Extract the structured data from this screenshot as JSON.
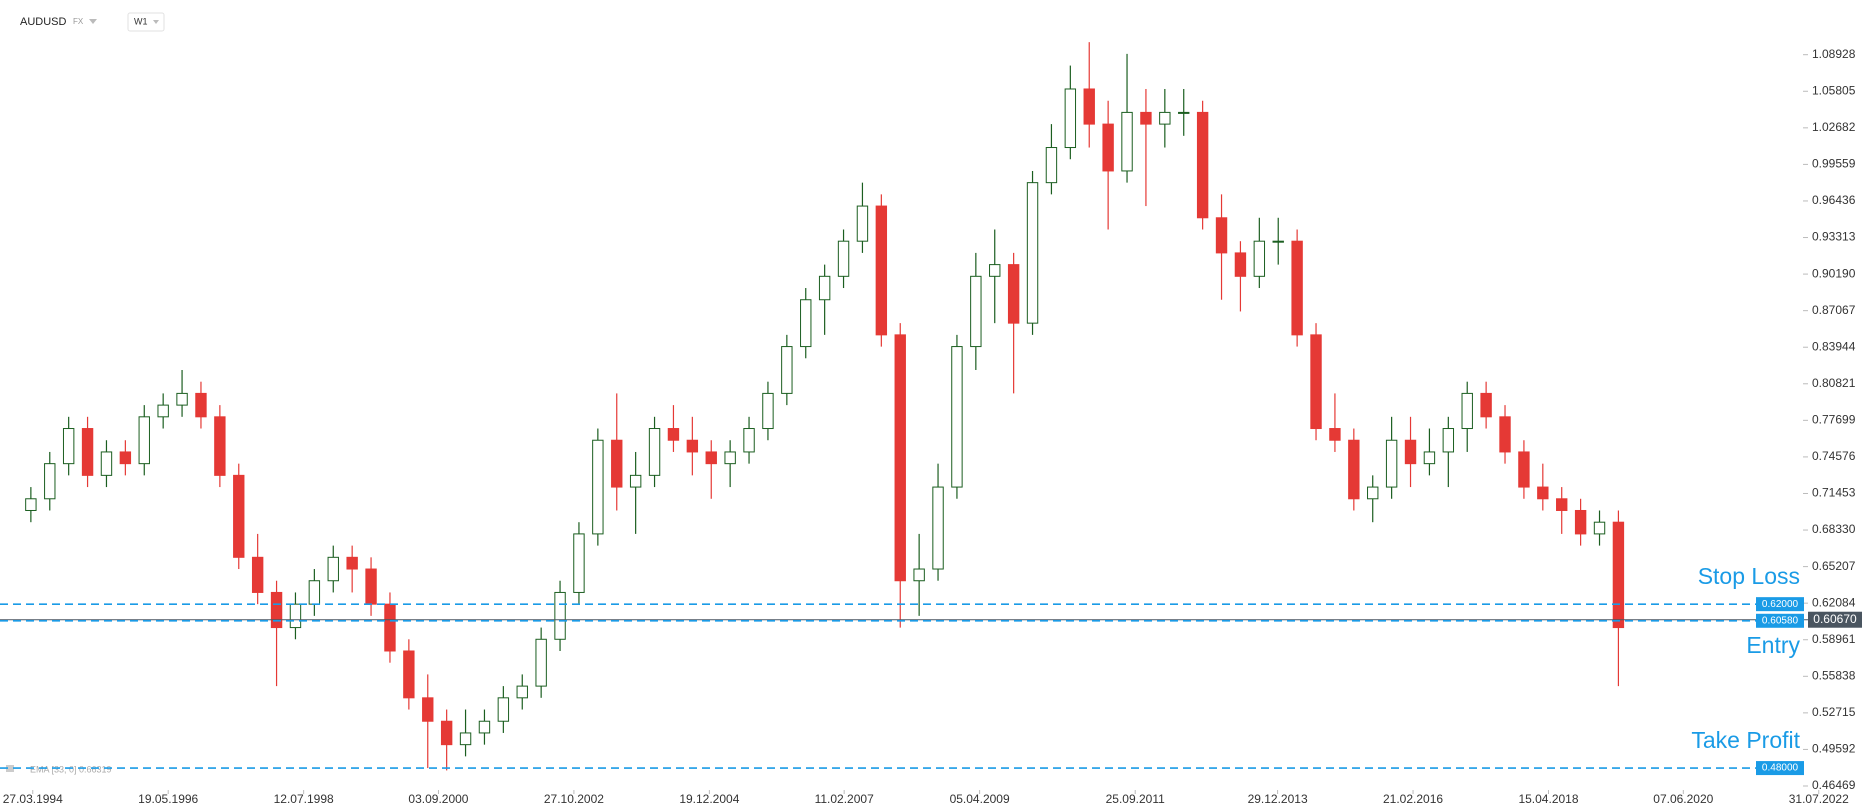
{
  "chart_data": {
    "type": "candlestick",
    "symbol": "AUDUSD",
    "market": "FX",
    "timeframe": "W1",
    "indicator_label": "EMA [33, 0] 0.66319",
    "up_color": "#1b5e20",
    "down_color": "#e53935",
    "x": [
      1994.2,
      1994.5,
      1994.8,
      1995.1,
      1995.4,
      1995.7,
      1996.0,
      1996.3,
      1996.6,
      1996.9,
      1997.2,
      1997.5,
      1997.8,
      1998.1,
      1998.4,
      1998.7,
      1999.0,
      1999.3,
      1999.6,
      1999.9,
      2000.2,
      2000.5,
      2000.8,
      2001.1,
      2001.4,
      2001.7,
      2002.0,
      2002.3,
      2002.6,
      2002.9,
      2003.2,
      2003.5,
      2003.8,
      2004.1,
      2004.4,
      2004.7,
      2005.0,
      2005.3,
      2005.6,
      2005.9,
      2006.2,
      2006.5,
      2006.8,
      2007.1,
      2007.4,
      2007.7,
      2008.0,
      2008.3,
      2008.6,
      2008.9,
      2009.2,
      2009.5,
      2009.8,
      2010.1,
      2010.4,
      2010.7,
      2011.0,
      2011.3,
      2011.6,
      2011.9,
      2012.2,
      2012.5,
      2012.8,
      2013.1,
      2013.4,
      2013.7,
      2014.0,
      2014.3,
      2014.6,
      2014.9,
      2015.2,
      2015.5,
      2015.8,
      2016.1,
      2016.4,
      2016.7,
      2017.0,
      2017.3,
      2017.6,
      2017.9,
      2018.2,
      2018.5,
      2018.8,
      2019.1,
      2019.4
    ],
    "open": [
      0.7,
      0.71,
      0.74,
      0.77,
      0.73,
      0.75,
      0.74,
      0.78,
      0.79,
      0.8,
      0.78,
      0.73,
      0.66,
      0.63,
      0.6,
      0.62,
      0.64,
      0.66,
      0.65,
      0.62,
      0.58,
      0.54,
      0.52,
      0.5,
      0.51,
      0.52,
      0.54,
      0.55,
      0.59,
      0.63,
      0.68,
      0.76,
      0.72,
      0.73,
      0.77,
      0.76,
      0.75,
      0.74,
      0.75,
      0.77,
      0.8,
      0.84,
      0.88,
      0.9,
      0.93,
      0.96,
      0.85,
      0.64,
      0.65,
      0.72,
      0.84,
      0.9,
      0.91,
      0.86,
      0.98,
      1.01,
      1.06,
      1.03,
      0.99,
      1.04,
      1.03,
      1.04,
      1.04,
      0.95,
      0.92,
      0.9,
      0.93,
      0.93,
      0.85,
      0.77,
      0.76,
      0.71,
      0.72,
      0.76,
      0.74,
      0.75,
      0.77,
      0.8,
      0.78,
      0.75,
      0.72,
      0.71,
      0.7,
      0.68,
      0.69
    ],
    "high": [
      0.72,
      0.75,
      0.78,
      0.78,
      0.76,
      0.76,
      0.79,
      0.8,
      0.82,
      0.81,
      0.79,
      0.74,
      0.68,
      0.64,
      0.63,
      0.65,
      0.67,
      0.67,
      0.66,
      0.63,
      0.59,
      0.56,
      0.53,
      0.53,
      0.53,
      0.55,
      0.56,
      0.6,
      0.64,
      0.69,
      0.77,
      0.8,
      0.75,
      0.78,
      0.79,
      0.78,
      0.76,
      0.76,
      0.78,
      0.81,
      0.85,
      0.89,
      0.91,
      0.94,
      0.98,
      0.97,
      0.86,
      0.68,
      0.74,
      0.85,
      0.92,
      0.94,
      0.92,
      0.99,
      1.03,
      1.08,
      1.1,
      1.05,
      1.09,
      1.06,
      1.06,
      1.06,
      1.05,
      0.97,
      0.93,
      0.95,
      0.95,
      0.94,
      0.86,
      0.8,
      0.77,
      0.73,
      0.78,
      0.78,
      0.77,
      0.78,
      0.81,
      0.81,
      0.79,
      0.76,
      0.74,
      0.72,
      0.71,
      0.7,
      0.7
    ],
    "low": [
      0.69,
      0.7,
      0.73,
      0.72,
      0.72,
      0.73,
      0.73,
      0.77,
      0.78,
      0.77,
      0.72,
      0.65,
      0.62,
      0.55,
      0.59,
      0.61,
      0.63,
      0.63,
      0.61,
      0.57,
      0.53,
      0.48,
      0.478,
      0.49,
      0.5,
      0.51,
      0.53,
      0.54,
      0.58,
      0.62,
      0.67,
      0.7,
      0.68,
      0.72,
      0.75,
      0.73,
      0.71,
      0.72,
      0.74,
      0.76,
      0.79,
      0.83,
      0.85,
      0.89,
      0.92,
      0.84,
      0.6,
      0.61,
      0.64,
      0.71,
      0.82,
      0.86,
      0.8,
      0.85,
      0.97,
      1.0,
      1.01,
      0.94,
      0.98,
      0.96,
      1.01,
      1.02,
      0.94,
      0.88,
      0.87,
      0.89,
      0.91,
      0.84,
      0.76,
      0.75,
      0.7,
      0.69,
      0.71,
      0.72,
      0.73,
      0.72,
      0.75,
      0.77,
      0.74,
      0.71,
      0.7,
      0.68,
      0.67,
      0.67,
      0.55
    ],
    "close": [
      0.71,
      0.74,
      0.77,
      0.73,
      0.75,
      0.74,
      0.78,
      0.79,
      0.8,
      0.78,
      0.73,
      0.66,
      0.63,
      0.6,
      0.62,
      0.64,
      0.66,
      0.65,
      0.62,
      0.58,
      0.54,
      0.52,
      0.5,
      0.51,
      0.52,
      0.54,
      0.55,
      0.59,
      0.63,
      0.68,
      0.76,
      0.72,
      0.73,
      0.77,
      0.76,
      0.75,
      0.74,
      0.75,
      0.77,
      0.8,
      0.84,
      0.88,
      0.9,
      0.93,
      0.96,
      0.85,
      0.64,
      0.65,
      0.72,
      0.84,
      0.9,
      0.91,
      0.86,
      0.98,
      1.01,
      1.06,
      1.03,
      0.99,
      1.04,
      1.03,
      1.04,
      1.04,
      0.95,
      0.92,
      0.9,
      0.93,
      0.93,
      0.85,
      0.77,
      0.76,
      0.71,
      0.72,
      0.76,
      0.74,
      0.75,
      0.77,
      0.8,
      0.78,
      0.75,
      0.72,
      0.71,
      0.7,
      0.68,
      0.69,
      0.6
    ],
    "xlim": [
      1993.71,
      2023.33
    ],
    "xticks": [
      {
        "value": 1994.23,
        "label": "27.03.1994"
      },
      {
        "value": 1996.38,
        "label": "19.05.1996"
      },
      {
        "value": 1998.53,
        "label": "12.07.1998"
      },
      {
        "value": 2000.67,
        "label": "03.09.2000"
      },
      {
        "value": 2002.82,
        "label": "27.10.2002"
      },
      {
        "value": 2004.97,
        "label": "19.12.2004"
      },
      {
        "value": 2007.11,
        "label": "11.02.2007"
      },
      {
        "value": 2009.26,
        "label": "05.04.2009"
      },
      {
        "value": 2011.73,
        "label": "25.09.2011"
      },
      {
        "value": 2013.99,
        "label": "29.12.2013"
      },
      {
        "value": 2016.14,
        "label": "21.02.2016"
      },
      {
        "value": 2018.29,
        "label": "15.04.2018"
      },
      {
        "value": 2020.43,
        "label": "07.06.2020"
      },
      {
        "value": 2022.58,
        "label": "31.07.2022"
      }
    ],
    "ylim": [
      0.457,
      1.136
    ],
    "yticks": [
      1.08928,
      1.05805,
      1.02682,
      0.99559,
      0.96436,
      0.93313,
      {
        "value": 0.9019,
        "label": "0.90190"
      },
      0.87067,
      0.83944,
      0.80821,
      0.77699,
      0.74576,
      0.71453,
      {
        "value": 0.6833,
        "label": "0.68330"
      },
      0.65207,
      0.62084,
      0.58961,
      0.55838,
      0.52715,
      0.49592,
      0.46469
    ],
    "levels": [
      {
        "name": "Stop Loss",
        "value": 0.62,
        "label": "0.62000",
        "color": "#1a9be6"
      },
      {
        "name": "Entry",
        "value": 0.6058,
        "label": "0.60580",
        "color": "#1a9be6"
      },
      {
        "name": "Take Profit",
        "value": 0.48,
        "label": "0.48000",
        "color": "#1a9be6"
      }
    ],
    "current_price": {
      "value": 0.6067,
      "label": "0.60670",
      "color": "#4a5560"
    }
  }
}
